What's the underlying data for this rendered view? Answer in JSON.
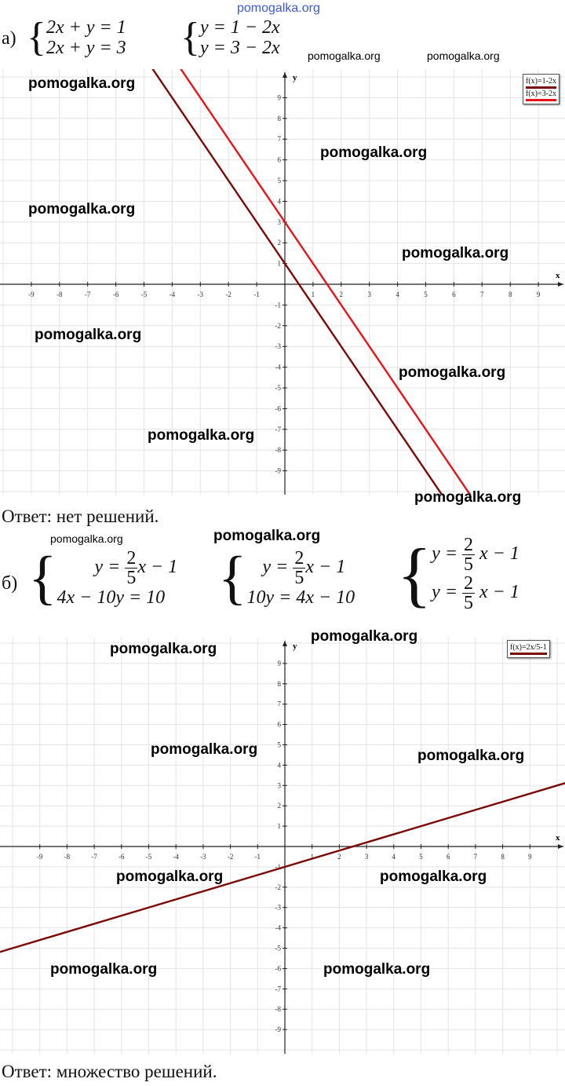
{
  "site": "pomogalka.org",
  "watermark": "pomogalka.org",
  "part_a": {
    "label": "а)",
    "system1": [
      "2x + y = 1",
      "2x + y = 3"
    ],
    "system2": [
      "y = 1 − 2x",
      "y = 3 − 2x"
    ],
    "answer": "Ответ: нет решений."
  },
  "part_b": {
    "label": "б)",
    "system1": {
      "l1_left": "y =",
      "num": "2",
      "den": "5",
      "l1_right": "x − 1",
      "l2": "4x − 10y = 10"
    },
    "system2": {
      "l1_left": "y =",
      "num": "2",
      "den": "5",
      "l1_right": "x − 1",
      "l2": "10y = 4x − 10"
    },
    "system3": {
      "l1_left": "y =",
      "num": "2",
      "den": "5",
      "l1_right": "x − 1",
      "l2_left": "y =",
      "l2_right": "x − 1"
    },
    "answer": "Ответ: множество решений."
  },
  "chart_data": [
    {
      "type": "line",
      "xlabel": "x",
      "ylabel": "y",
      "xlim": [
        -10,
        10
      ],
      "ylim": [
        -10,
        10
      ],
      "xticks": [
        -9,
        -8,
        -7,
        -6,
        -5,
        -4,
        -3,
        -2,
        -1,
        1,
        2,
        3,
        4,
        5,
        6,
        7,
        8,
        9
      ],
      "yticks": [
        -9,
        -8,
        -7,
        -6,
        -5,
        -4,
        -3,
        -2,
        -1,
        1,
        2,
        3,
        4,
        5,
        6,
        7,
        8,
        9
      ],
      "grid": true,
      "legend_placement": "top-right",
      "series": [
        {
          "name": "f(x)=1-2x",
          "slope": -2,
          "intercept": 1,
          "color": "#7a0a0a"
        },
        {
          "name": "f(x)=3-2x",
          "slope": -2,
          "intercept": 3,
          "color": "#e8141a"
        }
      ]
    },
    {
      "type": "line",
      "xlabel": "x",
      "ylabel": "y",
      "xlim": [
        -10,
        10
      ],
      "ylim": [
        -10,
        10
      ],
      "xticks": [
        -9,
        -8,
        -7,
        -6,
        -5,
        -4,
        -3,
        -2,
        -1,
        1,
        2,
        3,
        4,
        5,
        6,
        7,
        8,
        9
      ],
      "yticks": [
        -9,
        -8,
        -7,
        -6,
        -5,
        -4,
        -3,
        -2,
        -1,
        1,
        2,
        3,
        4,
        5,
        6,
        7,
        8,
        9
      ],
      "grid": true,
      "legend_placement": "top-right",
      "series": [
        {
          "name": "f(x)=2x/5-1",
          "slope": 0.4,
          "intercept": -1,
          "color": "#7a0a0a"
        }
      ]
    }
  ]
}
